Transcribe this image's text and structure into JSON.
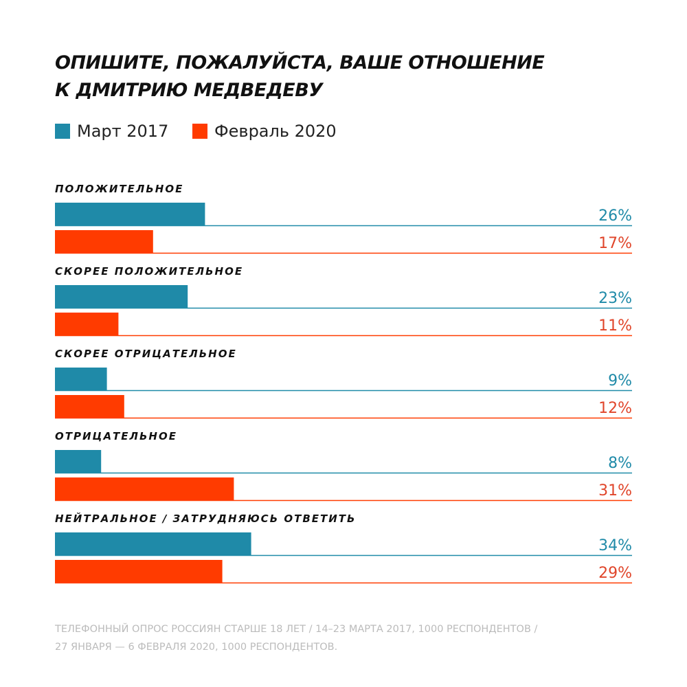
{
  "chart_data": {
    "type": "bar",
    "orientation": "horizontal",
    "title": [
      "ОПИШИТЕ, ПОЖАЛУЙСТА, ВАШЕ ОТНОШЕНИЕ",
      "К ДМИТРИЮ МЕДВЕДЕВУ"
    ],
    "categories": [
      "ПОЛОЖИТЕЛЬНОЕ",
      "СКОРЕЕ ПОЛОЖИТЕЛЬНОЕ",
      "СКОРЕЕ ОТРИЦАТЕЛЬНОЕ",
      "ОТРИЦАТЕЛЬНОЕ",
      "НЕЙТРАЛЬНОЕ / ЗАТРУДНЯЮСЬ ОТВЕТИТЬ"
    ],
    "series": [
      {
        "name": "Март 2017",
        "color": "#1f8aa8",
        "label_color": "#1f8aa8",
        "values": [
          26,
          23,
          9,
          8,
          34
        ],
        "value_labels": [
          "26%",
          "23%",
          "9%",
          "8%",
          "34%"
        ]
      },
      {
        "name": "Февраль 2020",
        "color": "#ff3b00",
        "label_color": "#e0452a",
        "values": [
          17,
          11,
          12,
          31,
          29
        ],
        "value_labels": [
          "17%",
          "11%",
          "12%",
          "31%",
          "29%"
        ]
      }
    ],
    "xlim": [
      0,
      100
    ],
    "note": [
      "ТЕЛЕФОННЫЙ ОПРОС РОССИЯН СТАРШЕ 18 ЛЕТ / 14–23 МАРТА 2017, 1000 РЕСПОНДЕНТОВ /",
      "27 ЯНВАРЯ — 6 ФЕВРАЛЯ 2020, 1000 РЕСПОНДЕНТОВ."
    ]
  }
}
